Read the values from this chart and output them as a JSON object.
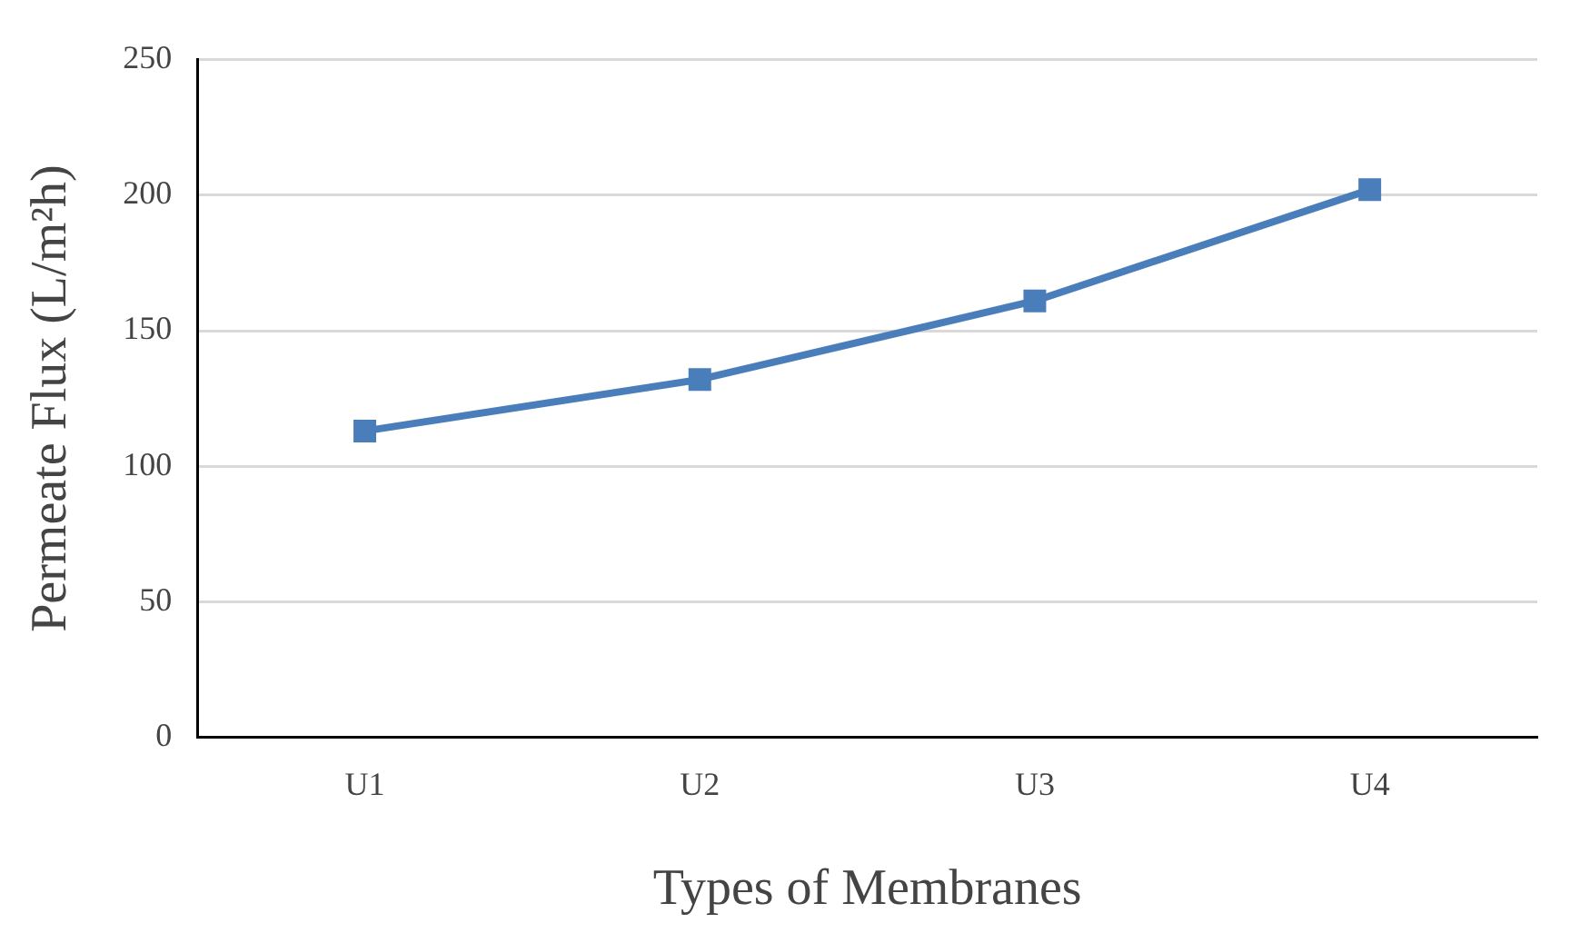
{
  "chart_data": {
    "type": "line",
    "xlabel": "Types of Membranes",
    "ylabel": "Permeate Flux (L/m²h)",
    "categories": [
      "U1",
      "U2",
      "U3",
      "U4"
    ],
    "series": [
      {
        "color": "#4a7ebb",
        "values": [
          113,
          132,
          161,
          202
        ]
      }
    ],
    "ylim": [
      0,
      250
    ],
    "yticks": [
      0,
      50,
      100,
      150,
      200,
      250
    ],
    "grid": "y",
    "legend": false,
    "marker": "square",
    "line_style": "solid"
  }
}
